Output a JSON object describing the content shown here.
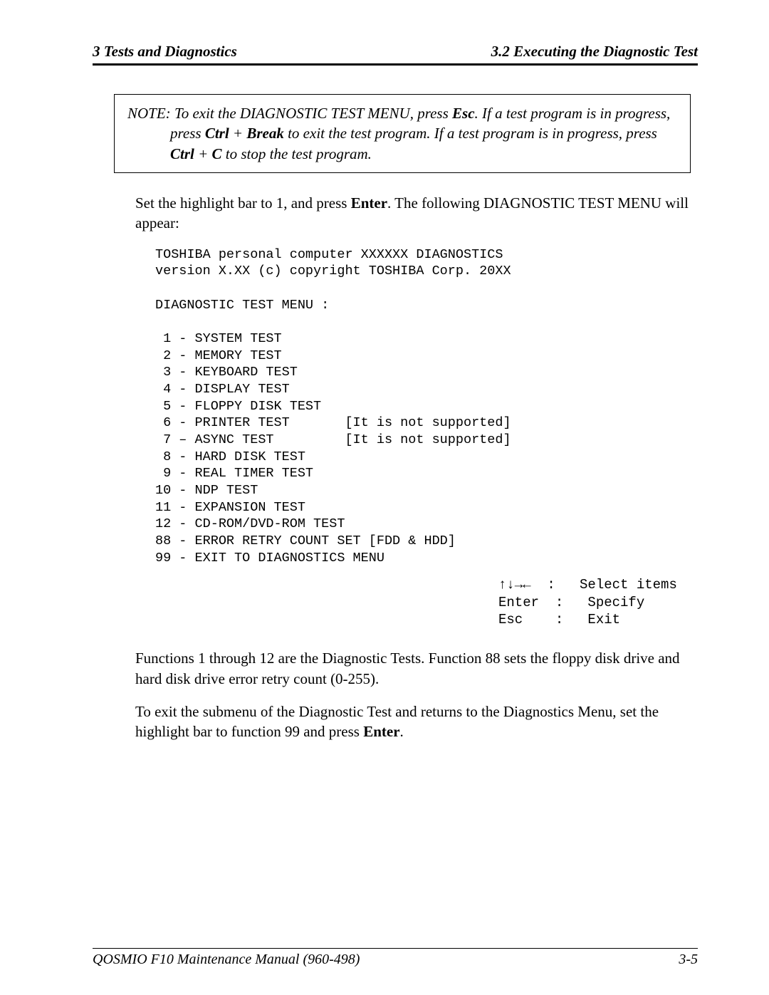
{
  "header": {
    "left": "3  Tests and Diagnostics",
    "right": "3.2  Executing the Diagnostic Test"
  },
  "note": {
    "label": "NOTE:",
    "t1": " To exit the DIAGNOSTIC TEST MENU, press ",
    "k1": "Esc",
    "t2": ". If a test program is in progress, press ",
    "k2": "Ctrl",
    "plus1": " + ",
    "k3": "Break",
    "t3": " to exit the test program. If a test program is in progress, press ",
    "k4": "Ctrl",
    "plus2": " + ",
    "k5": "C",
    "t4": " to stop the test program."
  },
  "para1": {
    "a": "Set the highlight bar to 1, and press ",
    "k": "Enter",
    "b": ". The following DIAGNOSTIC TEST MENU will appear:"
  },
  "menu": {
    "line1": "TOSHIBA personal computer XXXXXX DIAGNOSTICS",
    "line2": "version X.XX (c) copyright TOSHIBA Corp. 20XX",
    "blank": "",
    "title": "DIAGNOSTIC TEST MENU :",
    "i1": " 1 - SYSTEM TEST",
    "i2": " 2 - MEMORY TEST",
    "i3": " 3 - KEYBOARD TEST",
    "i4": " 4 - DISPLAY TEST",
    "i5": " 5 - FLOPPY DISK TEST",
    "i6": " 6 - PRINTER TEST       [It is not supported]",
    "i7": " 7 – ASYNC TEST         [It is not supported]",
    "i8": " 8 - HARD DISK TEST",
    "i9": " 9 - REAL TIMER TEST",
    "i10": "10 - NDP TEST",
    "i11": "11 - EXPANSION TEST",
    "i12": "12 - CD-ROM/DVD-ROM TEST",
    "i88": "88 - ERROR RETRY COUNT SET [FDD & HDD]",
    "i99": "99 - EXIT TO DIAGNOSTICS MENU"
  },
  "legend": {
    "l1": "↑↓→←  :   Select items",
    "l2": "Enter  :   Specify",
    "l3": "Esc    :   Exit"
  },
  "para2": "Functions 1 through 12 are the Diagnostic Tests. Function 88 sets the floppy disk drive and hard disk drive error retry count (0-255).",
  "para3": {
    "a": "To exit the submenu of the Diagnostic Test and returns to the Diagnostics Menu, set the highlight bar to function 99 and press ",
    "k": "Enter",
    "b": "."
  },
  "footer": {
    "left": "QOSMIO F10 Maintenance Manual (960-498)",
    "right": "3-5"
  }
}
